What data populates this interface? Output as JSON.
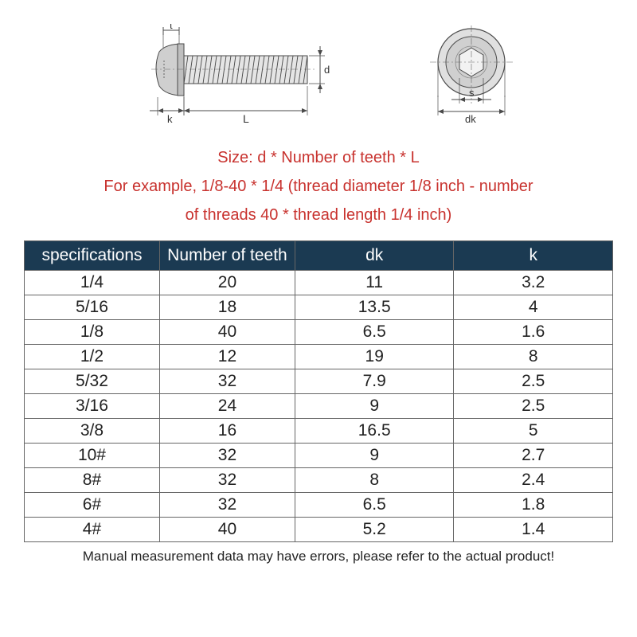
{
  "diagram": {
    "side": {
      "labels": {
        "t": "t",
        "k": "k",
        "L": "L",
        "d": "d"
      },
      "stroke": "#4a4a4a",
      "fill": "#d9d9d9",
      "head_color": "#bfbfbf"
    },
    "front": {
      "labels": {
        "s": "s",
        "dk": "dk"
      },
      "stroke": "#4a4a4a",
      "fill": "#cfcfcf"
    }
  },
  "description": {
    "line1": "Size: d * Number of teeth * L",
    "line2": "For example, 1/8-40 * 1/4 (thread diameter 1/8 inch - number",
    "line3": "of threads 40 * thread length 1/4 inch)",
    "color": "#c8322e",
    "fontsize": 20
  },
  "table": {
    "header_bg": "#1b3a52",
    "header_fg": "#ffffff",
    "border_color": "#666666",
    "columns": [
      "specifications",
      "Number of teeth",
      "dk",
      "k"
    ],
    "rows": [
      [
        "1/4",
        "20",
        "11",
        "3.2"
      ],
      [
        "5/16",
        "18",
        "13.5",
        "4"
      ],
      [
        "1/8",
        "40",
        "6.5",
        "1.6"
      ],
      [
        "1/2",
        "12",
        "19",
        "8"
      ],
      [
        "5/32",
        "32",
        "7.9",
        "2.5"
      ],
      [
        "3/16",
        "24",
        "9",
        "2.5"
      ],
      [
        "3/8",
        "16",
        "16.5",
        "5"
      ],
      [
        "10#",
        "32",
        "9",
        "2.7"
      ],
      [
        "8#",
        "32",
        "8",
        "2.4"
      ],
      [
        "6#",
        "32",
        "6.5",
        "1.8"
      ],
      [
        "4#",
        "40",
        "5.2",
        "1.4"
      ]
    ]
  },
  "footnote": "Manual measurement data may have errors, please refer to the actual product!"
}
